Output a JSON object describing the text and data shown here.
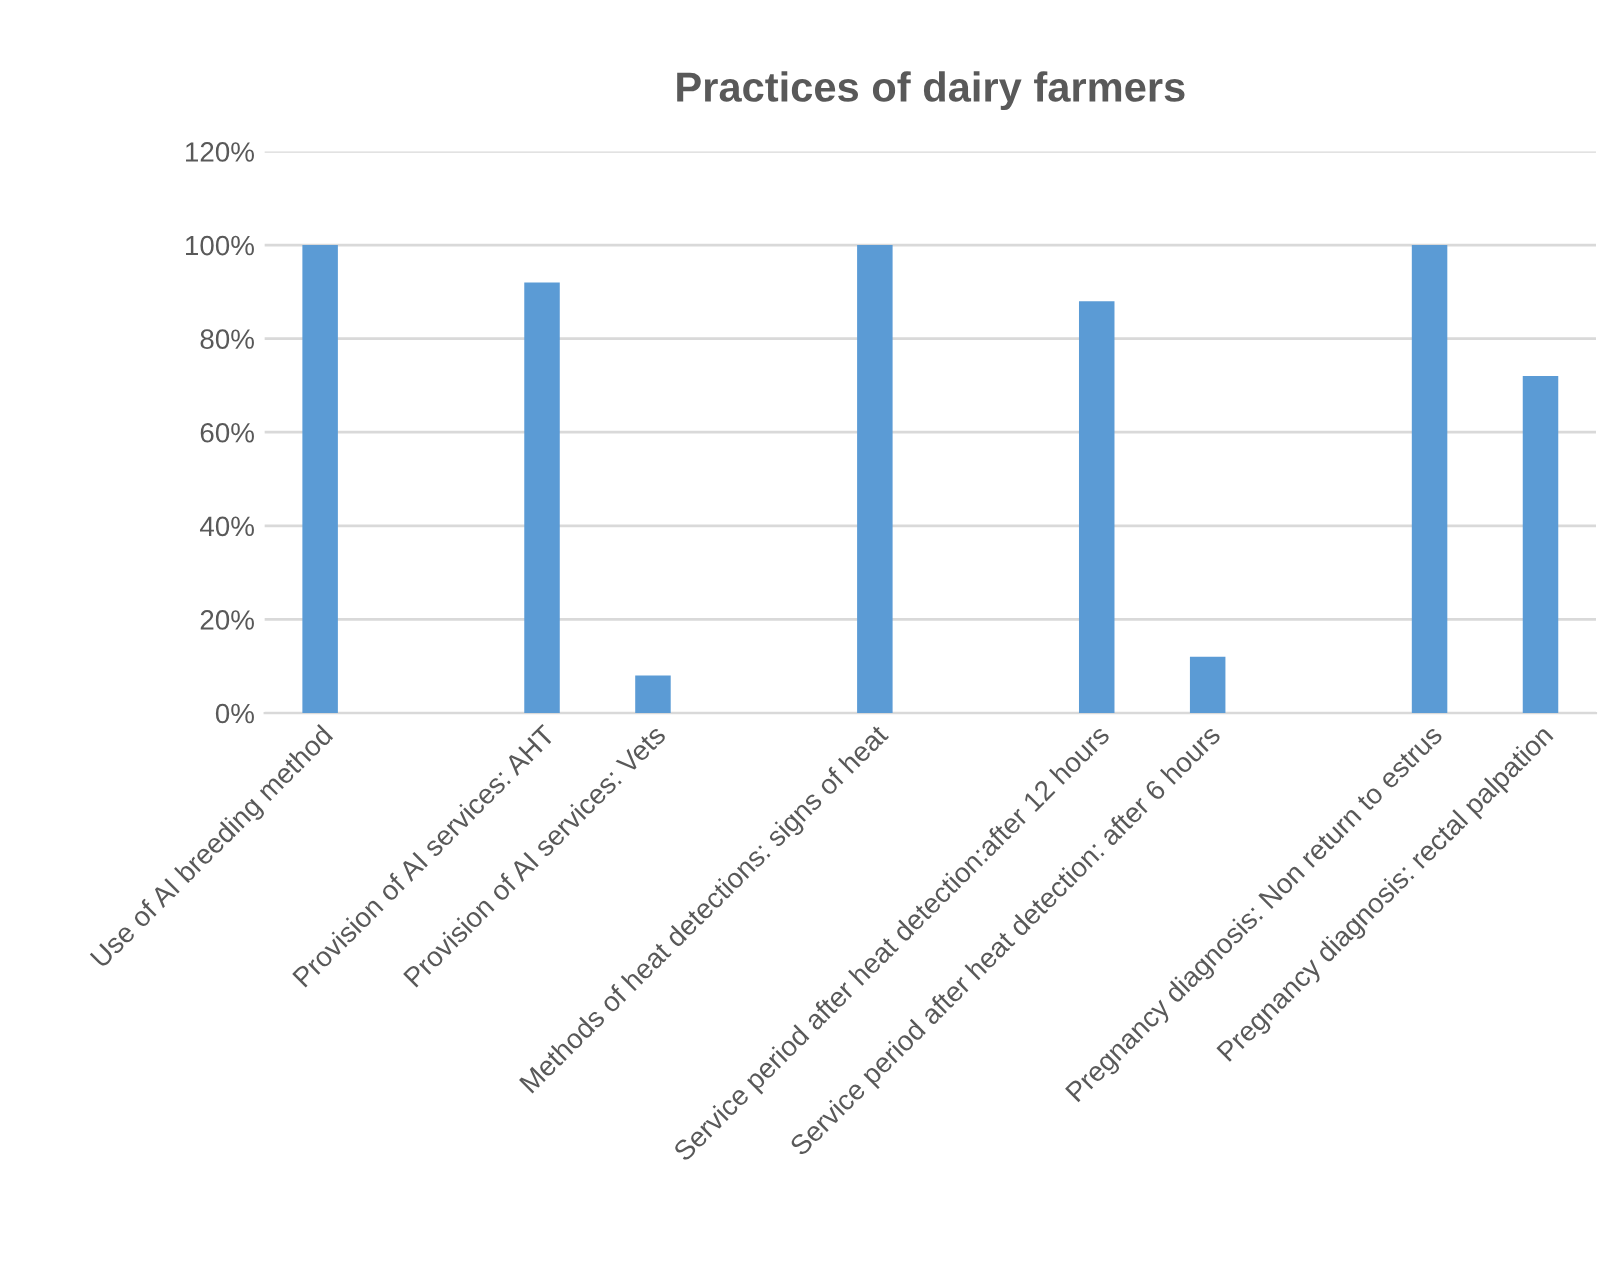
{
  "chart_data": {
    "type": "bar",
    "title": "Practices of dairy farmers",
    "categories": [
      "Use of AI breeding method",
      null,
      "Provision of AI services: AHT",
      "Provision of AI services: Vets",
      null,
      "Methods of heat detections: signs of heat",
      null,
      "Service period after heat detection:after 12 hours",
      "Service period after heat detection: after 6 hours",
      null,
      "Pregnancy diagnosis: Non return to estrus",
      "Pregnancy diagnosis: rectal palpation"
    ],
    "values": [
      100,
      null,
      92,
      8,
      null,
      100,
      null,
      88,
      12,
      null,
      100,
      72
    ],
    "color": "#5b9bd5",
    "ylim": [
      0,
      120
    ],
    "yticks": [
      {
        "value": 0,
        "label": "0%"
      },
      {
        "value": 20,
        "label": "20%"
      },
      {
        "value": 40,
        "label": "40%"
      },
      {
        "value": 60,
        "label": "60%"
      },
      {
        "value": 80,
        "label": "80%"
      },
      {
        "value": 100,
        "label": "100%"
      },
      {
        "value": 120,
        "label": "120%"
      }
    ],
    "grid": "y"
  }
}
